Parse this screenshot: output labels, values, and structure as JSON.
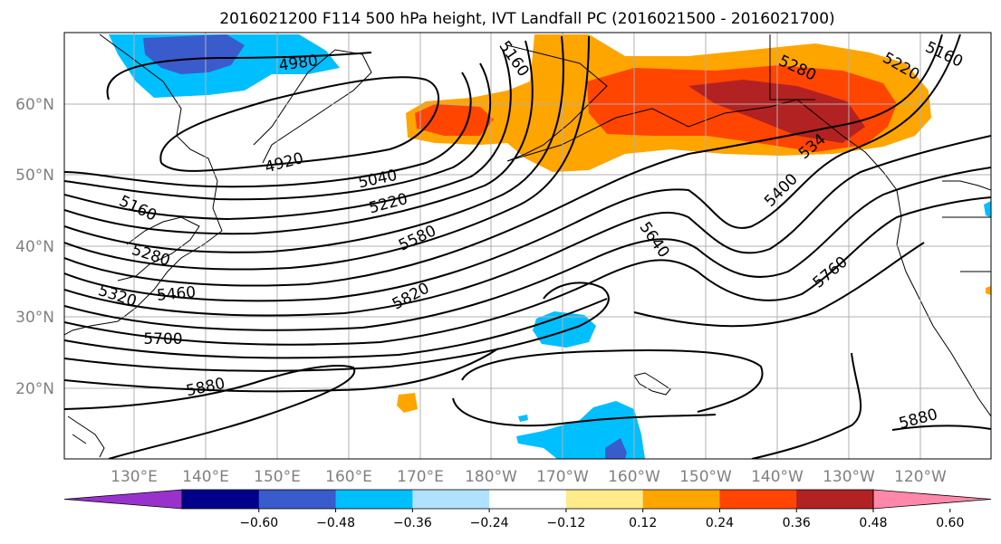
{
  "title": "2016021200 F114 500 hPa height, IVT Landfall PC (2016021500 - 2016021700)",
  "lon_ticks": [
    "130°E",
    "140°E",
    "150°E",
    "160°E",
    "170°E",
    "180°W",
    "170°W",
    "160°W",
    "150°W",
    "140°W",
    "130°W",
    "120°W"
  ],
  "lat_ticks": [
    "60°N",
    "50°N",
    "40°N",
    "30°N",
    "20°N"
  ],
  "colorbar": {
    "ticks": [
      "−0.60",
      "−0.48",
      "−0.36",
      "−0.24",
      "−0.12",
      "0.12",
      "0.24",
      "0.36",
      "0.48",
      "0.60"
    ],
    "colors": [
      "#9932cc",
      "#00008b",
      "#3a5bcc",
      "#00bfff",
      "#b0e2ff",
      "#ffffff",
      "#ffeb8a",
      "#ffa500",
      "#ff4500",
      "#b22222",
      "#ff88aa"
    ]
  },
  "contour_labels": [
    {
      "id": "l4980",
      "text": "4980"
    },
    {
      "id": "l5160a",
      "text": "5160"
    },
    {
      "id": "l4920",
      "text": "4920"
    },
    {
      "id": "l5040",
      "text": "5040"
    },
    {
      "id": "l5220a",
      "text": "5220"
    },
    {
      "id": "l5160b",
      "text": "5160"
    },
    {
      "id": "l5280a",
      "text": "5280"
    },
    {
      "id": "l5320",
      "text": "5320"
    },
    {
      "id": "l5460",
      "text": "5460"
    },
    {
      "id": "l5580",
      "text": "5580"
    },
    {
      "id": "l5700",
      "text": "5700"
    },
    {
      "id": "l5820",
      "text": "5820"
    },
    {
      "id": "l5880a",
      "text": "5880"
    },
    {
      "id": "l5640",
      "text": "5640"
    },
    {
      "id": "l5400",
      "text": "5400"
    },
    {
      "id": "l5340",
      "text": "534"
    },
    {
      "id": "l5280b",
      "text": "5280"
    },
    {
      "id": "l5220b",
      "text": "5220"
    },
    {
      "id": "l5160c",
      "text": "5160"
    },
    {
      "id": "l5760",
      "text": "5760"
    },
    {
      "id": "l5880b",
      "text": "5880"
    }
  ]
}
